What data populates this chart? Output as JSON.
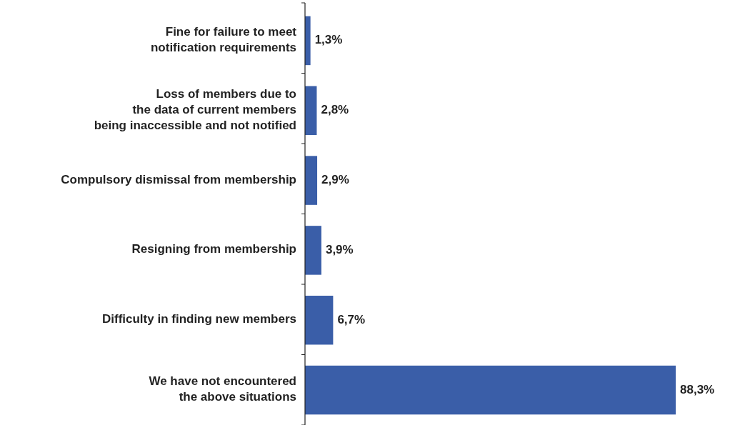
{
  "chart_data": {
    "type": "bar",
    "orientation": "horizontal",
    "categories": [
      "Fine for failure to meet\nnotification requirements",
      "Loss of members due to\nthe data of current members\nbeing inaccessible and not notified",
      "Compulsory dismissal from membership",
      "Resigning from membership",
      "Difficulty in finding new members",
      "We have not encountered\nthe above situations"
    ],
    "values": [
      1.3,
      2.8,
      2.9,
      3.9,
      6.7,
      88.3
    ],
    "value_labels": [
      "1,3%",
      "2,8%",
      "2,9%",
      "3,9%",
      "6,7%",
      "88,3%"
    ],
    "color": "#3a5ea8"
  }
}
